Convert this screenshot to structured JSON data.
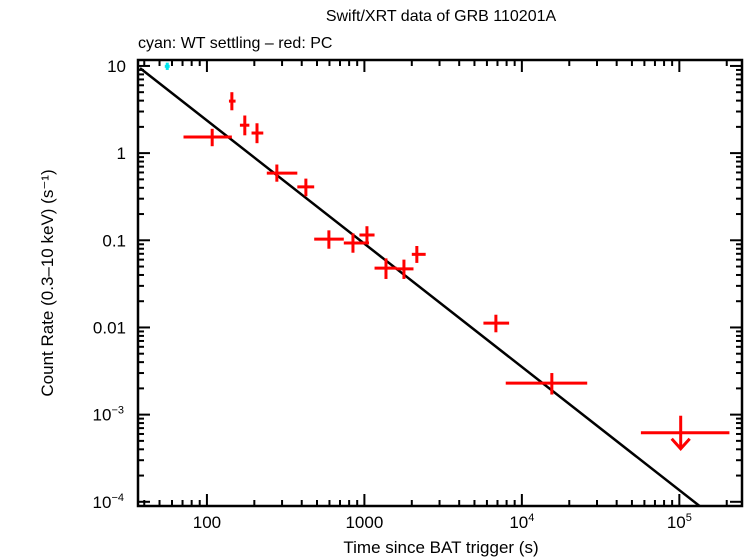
{
  "chart_data": {
    "type": "scatter",
    "title": "Swift/XRT data of GRB 110201A",
    "subtitle": "cyan: WT settling – red: PC",
    "xlabel": "Time since BAT trigger (s)",
    "ylabel": "Count Rate (0.3–10 keV) (s⁻¹)",
    "xscale": "log",
    "yscale": "log",
    "xlim": [
      36.5,
      250000
    ],
    "ylim": [
      8.95e-05,
      11.7
    ],
    "grid": false,
    "x_ticks": [
      {
        "value": 100,
        "label": "100"
      },
      {
        "value": 1000,
        "label": "1000"
      },
      {
        "value": 10000,
        "label": "10",
        "sup": "4"
      },
      {
        "value": 100000,
        "label": "10",
        "sup": "5"
      }
    ],
    "y_ticks": [
      {
        "value": 10,
        "label": "10"
      },
      {
        "value": 1,
        "label": "1"
      },
      {
        "value": 0.1,
        "label": "0.1"
      },
      {
        "value": 0.01,
        "label": "0.01"
      },
      {
        "value": 0.001,
        "label": "10",
        "sup": "−3"
      },
      {
        "value": 0.0001,
        "label": "10",
        "sup": "−4"
      }
    ],
    "series": [
      {
        "name": "WT settling",
        "color": "#00e5ee",
        "points": [
          {
            "t": 56,
            "t_lo": 54,
            "t_hi": 58,
            "rate": 9.9,
            "r_lo": 9.0,
            "r_hi": 10.9
          }
        ]
      },
      {
        "name": "PC",
        "color": "#ff0000",
        "points": [
          {
            "t": 108,
            "t_lo": 71,
            "t_hi": 144,
            "rate": 1.53,
            "r_lo": 1.2,
            "r_hi": 1.9
          },
          {
            "t": 144,
            "t_lo": 138,
            "t_hi": 152,
            "rate": 3.95,
            "r_lo": 3.1,
            "r_hi": 5.0
          },
          {
            "t": 174,
            "t_lo": 162,
            "t_hi": 186,
            "rate": 2.09,
            "r_lo": 1.6,
            "r_hi": 2.7
          },
          {
            "t": 208,
            "t_lo": 192,
            "t_hi": 228,
            "rate": 1.7,
            "r_lo": 1.3,
            "r_hi": 2.2
          },
          {
            "t": 278,
            "t_lo": 240,
            "t_hi": 375,
            "rate": 0.59,
            "r_lo": 0.47,
            "r_hi": 0.74
          },
          {
            "t": 425,
            "t_lo": 375,
            "t_hi": 480,
            "rate": 0.41,
            "r_lo": 0.32,
            "r_hi": 0.51
          },
          {
            "t": 595,
            "t_lo": 480,
            "t_hi": 740,
            "rate": 0.103,
            "r_lo": 0.08,
            "r_hi": 0.13
          },
          {
            "t": 846,
            "t_lo": 740,
            "t_hi": 1070,
            "rate": 0.093,
            "r_lo": 0.072,
            "r_hi": 0.12
          },
          {
            "t": 1038,
            "t_lo": 930,
            "t_hi": 1160,
            "rate": 0.115,
            "r_lo": 0.09,
            "r_hi": 0.145
          },
          {
            "t": 1371,
            "t_lo": 1160,
            "t_hi": 1600,
            "rate": 0.048,
            "r_lo": 0.036,
            "r_hi": 0.062
          },
          {
            "t": 1783,
            "t_lo": 1600,
            "t_hi": 2050,
            "rate": 0.047,
            "r_lo": 0.036,
            "r_hi": 0.06
          },
          {
            "t": 2153,
            "t_lo": 2000,
            "t_hi": 2450,
            "rate": 0.069,
            "r_lo": 0.055,
            "r_hi": 0.086
          },
          {
            "t": 6840,
            "t_lo": 5700,
            "t_hi": 8300,
            "rate": 0.0112,
            "r_lo": 0.0088,
            "r_hi": 0.014
          },
          {
            "t": 15500,
            "t_lo": 7900,
            "t_hi": 26000,
            "rate": 0.0023,
            "r_lo": 0.0017,
            "r_hi": 0.003
          }
        ]
      },
      {
        "name": "PC upper limit",
        "color": "#ff0000",
        "upper_limits": [
          {
            "t": 102000,
            "t_lo": 57000,
            "t_hi": 208000,
            "rate": 0.00062
          }
        ]
      }
    ],
    "fit_line": {
      "color": "#000000",
      "model": "power law",
      "points": [
        {
          "t": 37.6,
          "rate": 9.44
        },
        {
          "t": 135000,
          "rate": 8.9e-05
        }
      ],
      "slope": -1.41
    }
  }
}
